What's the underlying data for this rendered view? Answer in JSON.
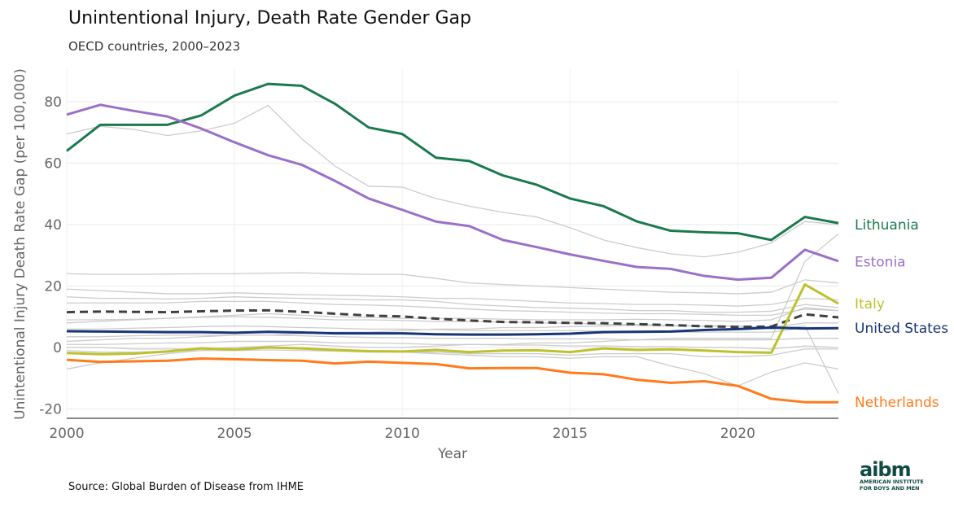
{
  "title": "Unintentional Injury, Death Rate Gender Gap",
  "subtitle": "OECD countries, 2000–2023",
  "source": "Source: Global Burden of Disease from IHME",
  "logo": {
    "text": "aibm",
    "line1": "AMERICAN INSTITUTE",
    "line2": "FOR BOYS AND MEN"
  },
  "chart_data": {
    "type": "line",
    "xlabel": "Year",
    "ylabel": "Unintentional Injury Death Rate Gap (per 100,000)",
    "xlim": [
      2000,
      2023
    ],
    "ylim": [
      -22,
      90
    ],
    "xticks": [
      2000,
      2005,
      2010,
      2015,
      2020
    ],
    "yticks": [
      -20,
      0,
      20,
      40,
      60,
      80
    ],
    "grid": true,
    "x": [
      2000,
      2001,
      2002,
      2003,
      2004,
      2005,
      2006,
      2007,
      2008,
      2009,
      2010,
      2011,
      2012,
      2013,
      2014,
      2015,
      2016,
      2017,
      2018,
      2019,
      2020,
      2021,
      2022,
      2023
    ],
    "highlighted": [
      {
        "name": "Lithuania",
        "color": "#1b7a4d",
        "values": [
          64,
          72.5,
          72.5,
          72.5,
          75.5,
          82,
          85.8,
          85.2,
          79.3,
          71.6,
          69.5,
          61.8,
          60.7,
          56,
          53,
          48.5,
          46,
          41,
          38,
          37.5,
          37.2,
          35,
          42.5,
          40.5
        ]
      },
      {
        "name": "Estonia",
        "color": "#9b70c8",
        "values": [
          75.8,
          79,
          77,
          75.2,
          71.3,
          66.8,
          62.6,
          59.5,
          54.2,
          48.5,
          44.8,
          41,
          39.5,
          35,
          32.7,
          30.3,
          28.2,
          26.2,
          25.6,
          23.3,
          22.1,
          22.7,
          31.8,
          28.1
        ]
      },
      {
        "name": "Italy",
        "color": "#bdc22c",
        "values": [
          -1.8,
          -2.2,
          -2,
          -1.3,
          -0.3,
          -0.7,
          0,
          -0.3,
          -0.8,
          -1.2,
          -1.3,
          -0.8,
          -1.5,
          -1,
          -0.9,
          -1.5,
          -0.3,
          -0.8,
          -0.6,
          -1,
          -1.5,
          -1.7,
          20.5,
          14.3
        ]
      },
      {
        "name": "United States",
        "color": "#183576",
        "values": [
          5.3,
          5.2,
          5.1,
          5,
          5,
          4.8,
          5.1,
          4.9,
          4.6,
          4.6,
          4.6,
          4.3,
          4.2,
          4.2,
          4.3,
          4.5,
          5,
          5.1,
          5.2,
          5.7,
          6,
          6.5,
          6.2,
          6.3
        ]
      },
      {
        "name": "Netherlands",
        "color": "#ff7b1c",
        "values": [
          -4,
          -4.7,
          -4.5,
          -4.3,
          -3.6,
          -3.8,
          -4.1,
          -4.3,
          -5.2,
          -4.6,
          -5,
          -5.4,
          -6.8,
          -6.7,
          -6.7,
          -8.2,
          -8.7,
          -10.5,
          -11.5,
          -11,
          -12.5,
          -16.7,
          -17.8,
          -17.8
        ]
      }
    ],
    "oecd_average": {
      "style": "dashed",
      "color": "#404040",
      "values": [
        11.5,
        11.7,
        11.6,
        11.5,
        11.8,
        12,
        12.1,
        11.6,
        11,
        10.4,
        10.1,
        9.4,
        8.8,
        8.3,
        8.2,
        8,
        7.9,
        7.6,
        7.3,
        6.9,
        6.7,
        6.8,
        10.8,
        9.8
      ]
    },
    "other_countries": {
      "color": "#cccccc",
      "series": [
        [
          69.5,
          72,
          71,
          69,
          70.5,
          73,
          78.8,
          68,
          59,
          52.5,
          52.2,
          48.5,
          46,
          44,
          42.5,
          39,
          35,
          32.5,
          30.5,
          29.5,
          31,
          34,
          41,
          40
        ],
        [
          24,
          23.8,
          23.8,
          23.9,
          24,
          24,
          24.2,
          24.3,
          24,
          23.8,
          23.8,
          22.5,
          21,
          20.5,
          20,
          19.5,
          19,
          18.5,
          18,
          17.8,
          17.5,
          18,
          22,
          21
        ],
        [
          19,
          18.5,
          18,
          17.5,
          17.5,
          17.8,
          17.5,
          17.2,
          17,
          16.8,
          16.5,
          16,
          16,
          15.5,
          15,
          14.5,
          14.3,
          14,
          14,
          13.8,
          13.5,
          14,
          16,
          15.5
        ],
        [
          16.5,
          16,
          16,
          15.8,
          16,
          16.5,
          16.2,
          16,
          15.8,
          15.5,
          15.5,
          15,
          14,
          13.5,
          13,
          12.8,
          12.5,
          12,
          12,
          11.5,
          11.5,
          11.8,
          14,
          13
        ],
        [
          14.5,
          14.5,
          14.5,
          14.5,
          15,
          15,
          15,
          14.5,
          14,
          13.8,
          13.5,
          13,
          12.5,
          12,
          11.8,
          11.5,
          11.2,
          11,
          11,
          10.8,
          10.5,
          10.5,
          12.5,
          12
        ],
        [
          9,
          9,
          9.2,
          9.5,
          10,
          10.5,
          11,
          10.5,
          10,
          9.8,
          9.5,
          9.5,
          9.5,
          9.2,
          9,
          9,
          9,
          9.2,
          9,
          8.8,
          8.5,
          9,
          13,
          12
        ],
        [
          8,
          8.5,
          9,
          9.5,
          9.8,
          10,
          9.8,
          9.5,
          9,
          9,
          8.8,
          8.5,
          8.5,
          8.3,
          8,
          8,
          7.5,
          7.5,
          7.2,
          7,
          7,
          6.5,
          8,
          8
        ],
        [
          6,
          6,
          6.3,
          6.5,
          6.8,
          7,
          6.8,
          6.5,
          6.3,
          6,
          6,
          5.8,
          5.5,
          5.5,
          5.5,
          5.5,
          5.3,
          5,
          5,
          5,
          5,
          5,
          6.5,
          6.5
        ],
        [
          3.5,
          3.5,
          3.8,
          4,
          4,
          4,
          4,
          3.8,
          3.5,
          3.3,
          3.2,
          3,
          3,
          3,
          2.8,
          2.8,
          2.8,
          2.5,
          2.5,
          2.5,
          2.5,
          2.5,
          3,
          3
        ],
        [
          1,
          1,
          1.2,
          1.5,
          1.5,
          2,
          2,
          2,
          1.5,
          1.5,
          1.3,
          1,
          1,
          0.8,
          0.8,
          0.5,
          0.5,
          0.3,
          0.3,
          0,
          0,
          -0.5,
          0.5,
          0
        ],
        [
          -7,
          -5,
          -3.5,
          -2,
          -1,
          0,
          0.5,
          1,
          0.5,
          0,
          0,
          0.5,
          1,
          1,
          1.5,
          1.5,
          2,
          2.5,
          3,
          3,
          3,
          3,
          28,
          37
        ],
        [
          2,
          2.5,
          3,
          3,
          3.5,
          4,
          4,
          4.5,
          5,
          5,
          5.5,
          6,
          6,
          6.5,
          6.5,
          6.8,
          7,
          7.2,
          7,
          7,
          7,
          6,
          7,
          -15
        ],
        [
          -1,
          -1.5,
          -1.5,
          -1.2,
          -1,
          -1,
          -0.8,
          -1,
          -1.2,
          -1.5,
          -1.5,
          -2,
          -2.5,
          -3,
          -3,
          -3.5,
          -3,
          -3,
          -6,
          -8.5,
          -12.5,
          -8,
          -5,
          -7
        ],
        [
          0,
          0,
          -0.5,
          -0.5,
          -0.5,
          0,
          0,
          -0.5,
          -1,
          -1,
          -1.5,
          -1.5,
          -2,
          -2,
          -2,
          -2.5,
          -2,
          -2,
          -2,
          -3,
          -3,
          -2.5,
          -0.5,
          -0.5
        ]
      ]
    }
  }
}
